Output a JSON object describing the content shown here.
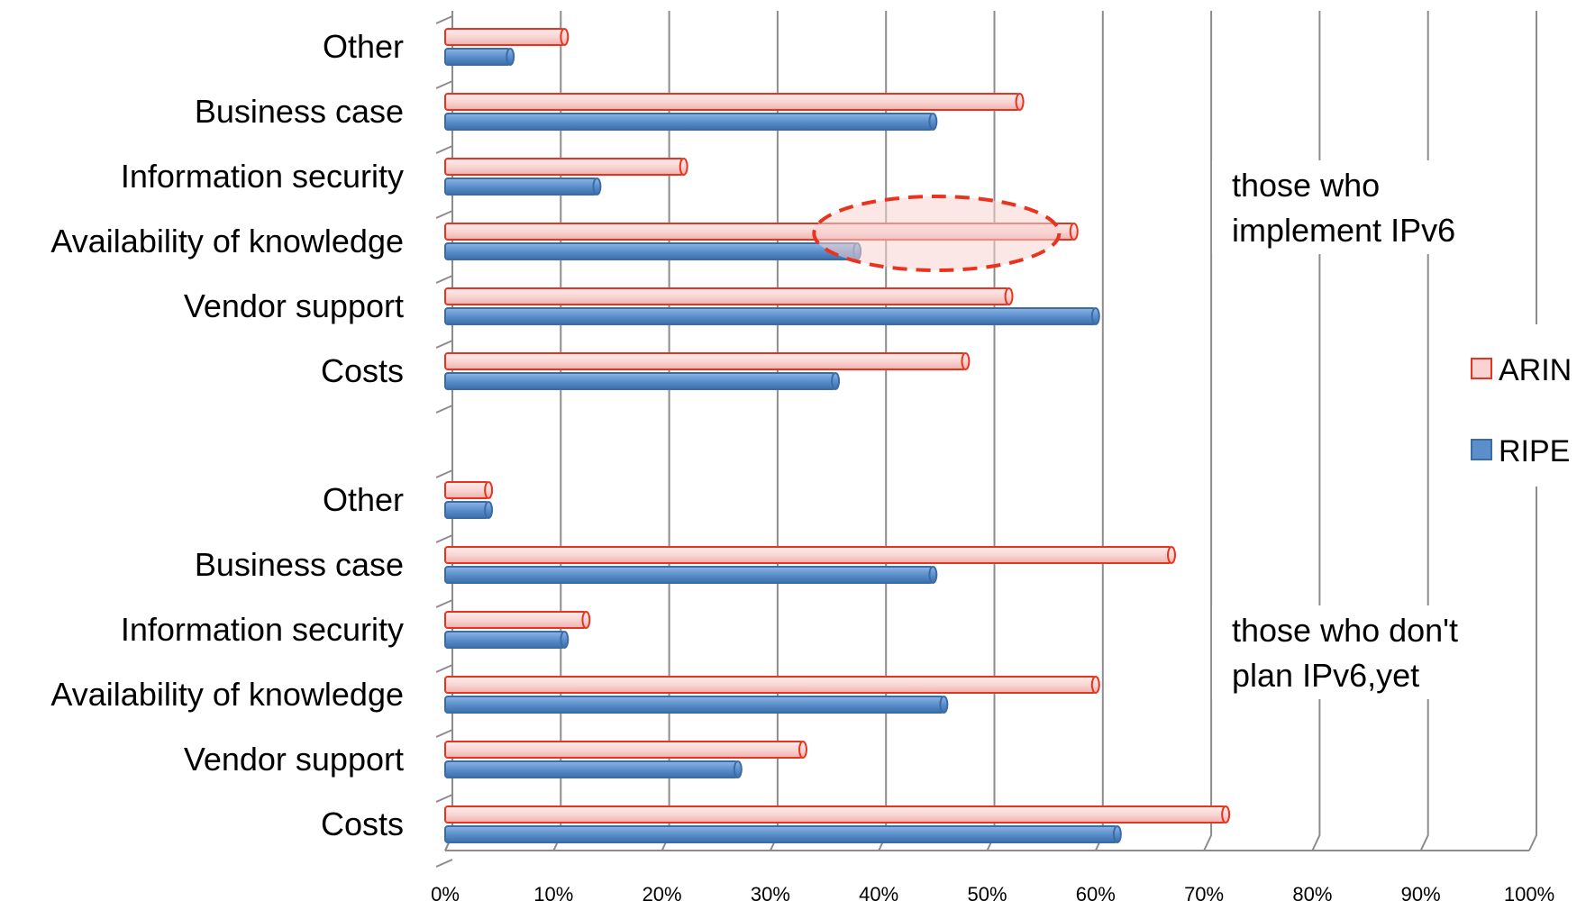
{
  "chart_data": {
    "type": "bar",
    "orientation": "horizontal",
    "x_ticks": [
      "0%",
      "10%",
      "20%",
      "30%",
      "40%",
      "50%",
      "60%",
      "70%",
      "80%",
      "90%",
      "100%"
    ],
    "xlim": [
      0,
      100
    ],
    "series_order": [
      "ARIN",
      "RIPE"
    ],
    "colors": {
      "ARIN_fill": "#f8d3d1",
      "ARIN_stroke": "#e8341f",
      "RIPE_fill": "#5b8fcc",
      "RIPE_stroke": "#3a6ca8",
      "highlight": "#e8341f"
    },
    "legend": {
      "position": "right",
      "items": [
        {
          "name": "ARIN"
        },
        {
          "name": "RIPE"
        }
      ]
    },
    "groups": [
      {
        "label": "those who implement IPv6",
        "label_lines": [
          "those who",
          "implement IPv6"
        ],
        "categories": [
          "Other",
          "Business case",
          "Information security",
          "Availability of knowledge",
          "Vendor support",
          "Costs"
        ],
        "series": [
          {
            "name": "ARIN",
            "values": [
              11,
              53,
              22,
              58,
              52,
              48
            ]
          },
          {
            "name": "RIPE",
            "values": [
              6,
              45,
              14,
              38,
              60,
              36
            ]
          }
        ],
        "highlighted_category": "Availability of knowledge"
      },
      {
        "label": "those who don't plan IPv6,yet",
        "label_lines": [
          "those who don't",
          "plan IPv6,yet"
        ],
        "categories": [
          "Other",
          "Business case",
          "Information security",
          "Availability of knowledge",
          "Vendor support",
          "Costs"
        ],
        "series": [
          {
            "name": "ARIN",
            "values": [
              4,
              67,
              13,
              60,
              33,
              72
            ]
          },
          {
            "name": "RIPE",
            "values": [
              4,
              45,
              11,
              46,
              27,
              62
            ]
          }
        ]
      }
    ]
  }
}
